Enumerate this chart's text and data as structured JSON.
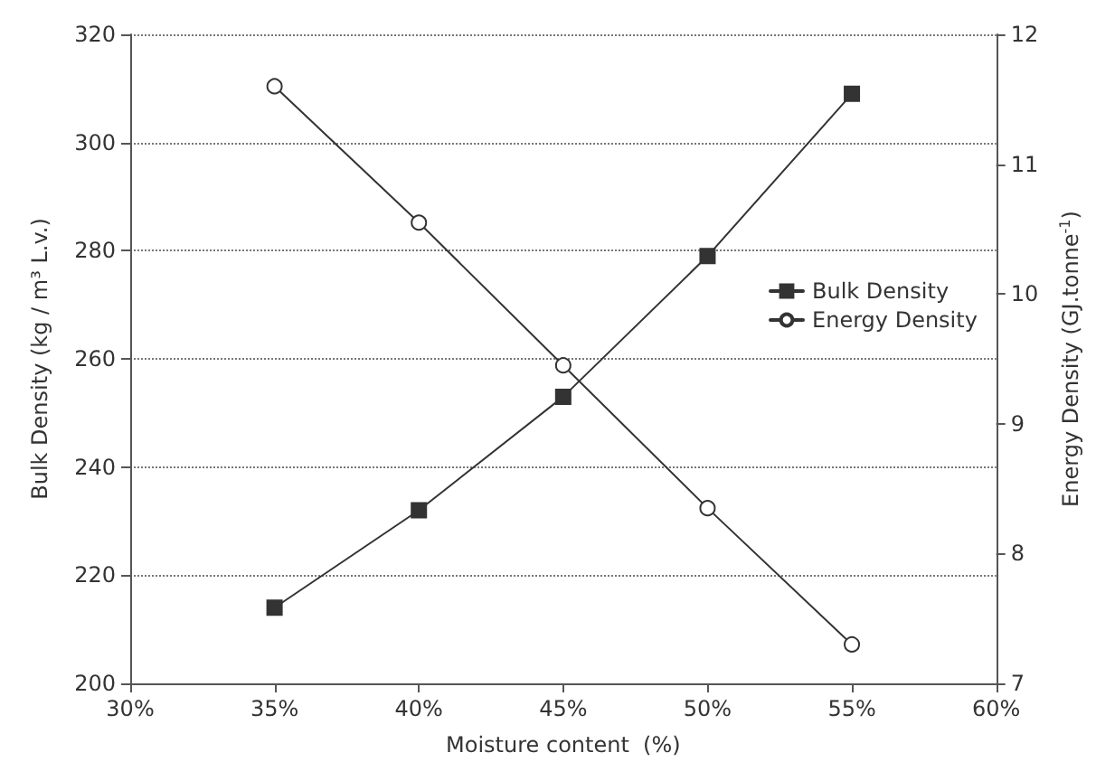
{
  "chart_data": {
    "type": "line",
    "xlabel": "Moisture content  (%)",
    "ylabel": "Bulk Density (kg / m³ L.v.)",
    "y2label": "Energy Density (GJ.tonne$^{-1}$)",
    "x": [
      35,
      40,
      45,
      50,
      55
    ],
    "series": [
      {
        "name": "Bulk Density",
        "color": "#333333",
        "marker": "square",
        "values": [
          214,
          232,
          253,
          279,
          309
        ]
      },
      {
        "name": "Energy Density",
        "color": "#333333",
        "marker": "circle",
        "axis": "y2",
        "values": [
          11.6,
          10.55,
          9.45,
          8.35,
          7.3
        ]
      }
    ],
    "xlim": [
      30,
      60
    ],
    "xticks": [
      {
        "value": 30,
        "label": "30%"
      },
      {
        "value": 35,
        "label": "35%"
      },
      {
        "value": 40,
        "label": "40%"
      },
      {
        "value": 45,
        "label": "45%"
      },
      {
        "value": 50,
        "label": "50%"
      },
      {
        "value": 55,
        "label": "55%"
      },
      {
        "value": 60,
        "label": "60%"
      }
    ],
    "ylim": [
      200,
      320
    ],
    "yticks": [
      200,
      220,
      240,
      260,
      280,
      300,
      320
    ],
    "y2lim": [
      7,
      12
    ],
    "y2ticks": [
      7,
      8,
      9,
      10,
      11,
      12
    ],
    "grid": "y",
    "legend": "right",
    "line_style": "solid"
  }
}
